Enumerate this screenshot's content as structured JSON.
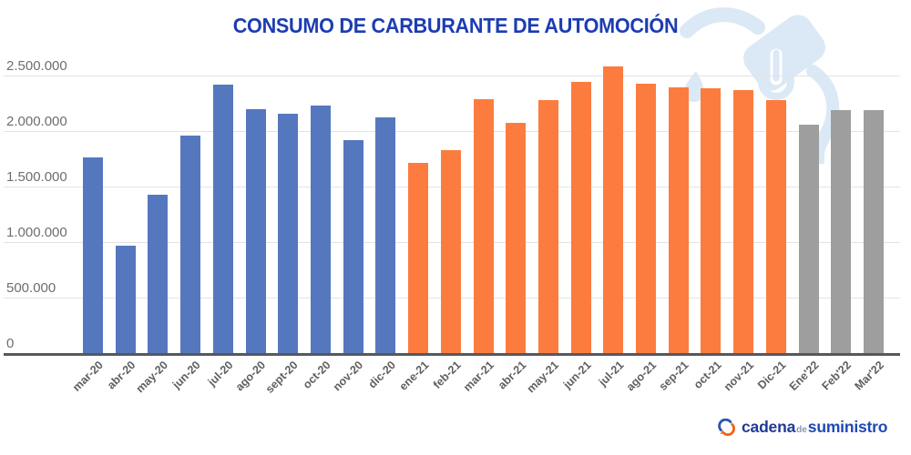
{
  "title": "CONSUMO DE CARBURANTE DE AUTOMOCIÓN",
  "axis": {
    "y_ticks": [
      {
        "label": "2.500.000",
        "value": 2500000
      },
      {
        "label": "2.000.000",
        "value": 2000000
      },
      {
        "label": "1.500.000",
        "value": 1500000
      },
      {
        "label": "1.000.000",
        "value": 1000000
      },
      {
        "label": "500.000",
        "value": 500000
      },
      {
        "label": "0",
        "value": 0
      }
    ]
  },
  "chart_data": {
    "type": "bar",
    "title": "CONSUMO DE CARBURANTE DE AUTOMOCIÓN",
    "xlabel": "",
    "ylabel": "",
    "ylim": [
      0,
      2500000
    ],
    "grid": true,
    "legend": false,
    "series": [
      {
        "name": "2020",
        "color": "#5577be",
        "categories": [
          "mar-20",
          "abr-20",
          "may-20",
          "jun-20",
          "jul-20",
          "ago-20",
          "sept-20",
          "oct-20",
          "nov-20",
          "dic-20"
        ],
        "values": [
          1770000,
          970000,
          1430000,
          1960000,
          2420000,
          2200000,
          2160000,
          2230000,
          1920000,
          2130000
        ]
      },
      {
        "name": "2021",
        "color": "#fc7c3f",
        "categories": [
          "ene-21",
          "feb-21",
          "mar-21",
          "abr-21",
          "may-21",
          "jun-21",
          "jul-21",
          "ago-21",
          "sep-21",
          "oct-21",
          "nov-21",
          "Dic-21"
        ],
        "values": [
          1720000,
          1830000,
          2290000,
          2080000,
          2280000,
          2450000,
          2590000,
          2430000,
          2400000,
          2390000,
          2370000,
          2280000
        ]
      },
      {
        "name": "2022",
        "color": "#9e9e9e",
        "categories": [
          "Ene'22",
          "Feb'22",
          "Mar'22"
        ],
        "values": [
          2060000,
          2190000,
          2190000
        ]
      }
    ]
  },
  "watermark": {
    "icon": "fuel-nozzle-icon",
    "color": "#dbe8f5"
  },
  "logo": {
    "cadena": "cadena",
    "de": "de",
    "suministro": "suministro"
  },
  "colors": {
    "title": "#1d3cb3",
    "gridline": "#e3e3e3",
    "x_axis_line": "#54595f",
    "y_tick_text": "#6e6e6e",
    "x_tick_text": "#5f5f5f",
    "bar_2020": "#5577be",
    "bar_2021": "#fc7c3f",
    "bar_2022": "#9e9e9e",
    "watermark": "#dbe8f5",
    "logo_blue": "#1f3a96",
    "logo_orange": "#f0641e"
  }
}
